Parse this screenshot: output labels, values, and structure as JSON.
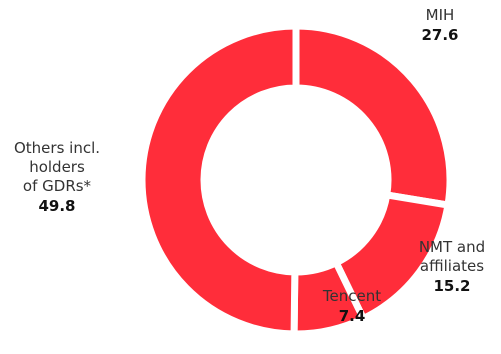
{
  "chart_data": {
    "type": "pie",
    "variant": "donut",
    "segments": [
      {
        "name_lines": [
          "MIH"
        ],
        "value": 27.6
      },
      {
        "name_lines": [
          "NMT and",
          "affiliates"
        ],
        "value": 15.2
      },
      {
        "name_lines": [
          "Tencent"
        ],
        "value": 7.4
      },
      {
        "name_lines": [
          "Others incl.",
          "holders",
          "of GDRs*"
        ],
        "value": 49.8
      }
    ],
    "value_format": "one decimal place",
    "colors": {
      "segment": "#ff2d3a",
      "separator": "#ffffff",
      "label": "#333333",
      "value": "#111111"
    }
  }
}
